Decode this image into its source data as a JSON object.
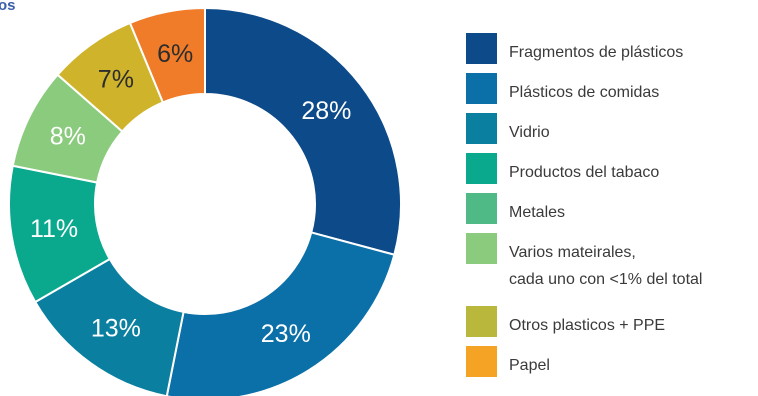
{
  "title": "os",
  "chart_data": {
    "type": "pie",
    "style": "donut",
    "slices": [
      {
        "name": "Fragmentos de plásticos",
        "value": 28,
        "label": "28%",
        "color": "#0c4a8a"
      },
      {
        "name": "Plásticos de comidas",
        "value": 23,
        "label": "23%",
        "color": "#0b6fa8"
      },
      {
        "name": "Vidrio",
        "value": 13,
        "label": "13%",
        "color": "#0a7fa0"
      },
      {
        "name": " Productos del tabaco",
        "value": 11,
        "label": "11%",
        "color": "#0aa98e"
      },
      {
        "name": "Metales",
        "value": 8,
        "label": "8%",
        "color": "#8acb7d"
      },
      {
        "name": "Varios mateirales,\n cada uno con <1%  del total",
        "value": 7,
        "label": "7%",
        "color": "#cfb42b"
      },
      {
        "name": "Otros plasticos + PPE",
        "value": 6,
        "label": "6%",
        "color": "#f07c2a"
      },
      {
        "name": "Papel",
        "value": 0,
        "label": "",
        "color": "#f5a324"
      }
    ],
    "legend_placement": "right"
  },
  "legend": {
    "items": [
      {
        "label": "Fragmentos de plásticos",
        "color": "#0c4a8a"
      },
      {
        "label": "Plásticos de comidas",
        "color": "#0b6fa8"
      },
      {
        "label": "Vidrio",
        "color": "#0a7fa0"
      },
      {
        "label": " Productos del tabaco",
        "color": "#0aa98e"
      },
      {
        "label": "Metales",
        "color": "#4fba86"
      },
      {
        "label": "Varios mateirales,\n cada uno con <1%  del total",
        "color": "#8acb7d"
      },
      {
        "label": "Otros plasticos + PPE",
        "color": "#b9b83c"
      },
      {
        "label": "Papel",
        "color": "#f5a324"
      }
    ]
  }
}
